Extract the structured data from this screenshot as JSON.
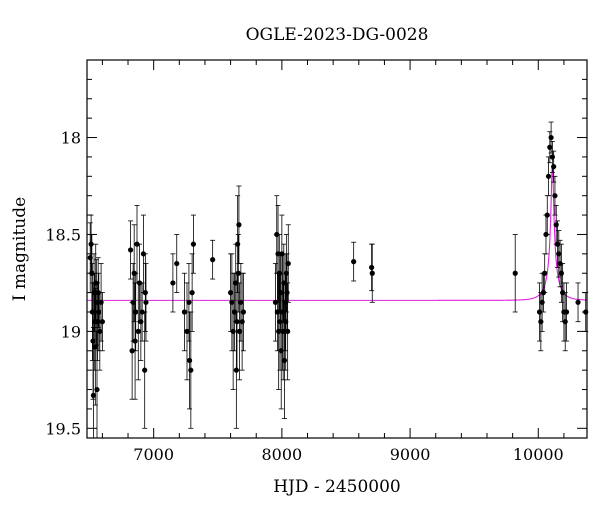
{
  "chart_data": {
    "type": "scatter",
    "title": "OGLE-2023-DG-0028",
    "xlabel": "HJD - 2450000",
    "ylabel": "I magnitude",
    "xlim": [
      6480,
      10380
    ],
    "ylim": [
      19.55,
      17.6
    ],
    "y_inverted": true,
    "x_ticks": [
      7000,
      8000,
      9000,
      10000
    ],
    "y_ticks": [
      18,
      18.5,
      19,
      19.5
    ],
    "x_minor_step": 200,
    "y_minor_step": 0.1,
    "grid": false,
    "colors": {
      "points": "#000000",
      "model": "#e020e0"
    },
    "series": [
      {
        "type": "scatter",
        "points": [
          [
            6505,
            18.62,
            0.18
          ],
          [
            6512,
            18.55,
            0.15
          ],
          [
            6518,
            18.7,
            0.2
          ],
          [
            6522,
            18.9,
            0.25
          ],
          [
            6527,
            19.05,
            0.3
          ],
          [
            6530,
            19.33,
            0.35
          ],
          [
            6535,
            18.8,
            0.2
          ],
          [
            6540,
            18.95,
            0.25
          ],
          [
            6545,
            19.08,
            0.3
          ],
          [
            6548,
            18.75,
            0.2
          ],
          [
            6553,
            18.85,
            0.22
          ],
          [
            6558,
            19.3,
            0.3
          ],
          [
            6562,
            18.95,
            0.2
          ],
          [
            6567,
            18.8,
            0.18
          ],
          [
            6572,
            18.9,
            0.2
          ],
          [
            6580,
            19.0,
            0.2
          ],
          [
            6590,
            18.85,
            0.2
          ],
          [
            6600,
            18.95,
            0.15
          ],
          [
            6820,
            18.58,
            0.15
          ],
          [
            6832,
            19.1,
            0.25
          ],
          [
            6840,
            18.85,
            0.2
          ],
          [
            6848,
            18.7,
            0.25
          ],
          [
            6855,
            19.05,
            0.3
          ],
          [
            6860,
            18.9,
            0.2
          ],
          [
            6870,
            18.55,
            0.2
          ],
          [
            6880,
            19.0,
            0.25
          ],
          [
            6890,
            18.75,
            0.2
          ],
          [
            6900,
            18.95,
            0.2
          ],
          [
            6910,
            18.9,
            0.15
          ],
          [
            6920,
            18.6,
            0.2
          ],
          [
            6930,
            19.2,
            0.3
          ],
          [
            6935,
            18.8,
            0.2
          ],
          [
            6940,
            18.85,
            0.2
          ],
          [
            7150,
            18.75,
            0.15
          ],
          [
            7180,
            18.65,
            0.15
          ],
          [
            7240,
            18.9,
            0.2
          ],
          [
            7260,
            19.0,
            0.25
          ],
          [
            7275,
            18.85,
            0.2
          ],
          [
            7280,
            19.15,
            0.25
          ],
          [
            7290,
            19.2,
            0.3
          ],
          [
            7300,
            18.8,
            0.2
          ],
          [
            7310,
            18.55,
            0.15
          ],
          [
            7460,
            18.63,
            0.1
          ],
          [
            7600,
            18.8,
            0.2
          ],
          [
            7610,
            18.85,
            0.25
          ],
          [
            7620,
            19.0,
            0.3
          ],
          [
            7630,
            18.9,
            0.2
          ],
          [
            7640,
            18.75,
            0.2
          ],
          [
            7645,
            19.2,
            0.3
          ],
          [
            7650,
            18.95,
            0.25
          ],
          [
            7655,
            18.55,
            0.25
          ],
          [
            7660,
            18.7,
            0.2
          ],
          [
            7665,
            18.45,
            0.2
          ],
          [
            7670,
            19.0,
            0.25
          ],
          [
            7680,
            18.85,
            0.2
          ],
          [
            7690,
            18.95,
            0.25
          ],
          [
            7700,
            18.9,
            0.2
          ],
          [
            7950,
            18.85,
            0.2
          ],
          [
            7960,
            18.5,
            0.2
          ],
          [
            7965,
            18.9,
            0.2
          ],
          [
            7970,
            18.6,
            0.25
          ],
          [
            7975,
            19.0,
            0.3
          ],
          [
            7980,
            18.7,
            0.2
          ],
          [
            7985,
            18.95,
            0.25
          ],
          [
            7990,
            18.8,
            0.2
          ],
          [
            7995,
            19.1,
            0.3
          ],
          [
            8000,
            18.6,
            0.2
          ],
          [
            8005,
            18.9,
            0.3
          ],
          [
            8010,
            19.0,
            0.25
          ],
          [
            8015,
            18.75,
            0.2
          ],
          [
            8020,
            19.15,
            0.3
          ],
          [
            8025,
            18.85,
            0.25
          ],
          [
            8030,
            18.95,
            0.25
          ],
          [
            8035,
            18.7,
            0.2
          ],
          [
            8040,
            18.8,
            0.2
          ],
          [
            8045,
            19.0,
            0.25
          ],
          [
            8050,
            18.65,
            0.2
          ],
          [
            8560,
            18.64,
            0.1
          ],
          [
            8700,
            18.67,
            0.12
          ],
          [
            8705,
            18.7,
            0.15
          ],
          [
            9820,
            18.7,
            0.2
          ],
          [
            10010,
            18.9,
            0.15
          ],
          [
            10020,
            18.95,
            0.15
          ],
          [
            10030,
            18.85,
            0.15
          ],
          [
            10040,
            18.8,
            0.1
          ],
          [
            10050,
            18.7,
            0.1
          ],
          [
            10060,
            18.5,
            0.1
          ],
          [
            10070,
            18.4,
            0.1
          ],
          [
            10080,
            18.2,
            0.1
          ],
          [
            10090,
            18.05,
            0.08
          ],
          [
            10100,
            18.0,
            0.08
          ],
          [
            10110,
            18.1,
            0.08
          ],
          [
            10120,
            18.15,
            0.08
          ],
          [
            10130,
            18.3,
            0.1
          ],
          [
            10140,
            18.45,
            0.1
          ],
          [
            10150,
            18.55,
            0.12
          ],
          [
            10160,
            18.6,
            0.12
          ],
          [
            10170,
            18.65,
            0.12
          ],
          [
            10180,
            18.7,
            0.15
          ],
          [
            10190,
            18.8,
            0.15
          ],
          [
            10200,
            18.9,
            0.15
          ],
          [
            10210,
            18.95,
            0.15
          ],
          [
            10220,
            18.9,
            0.15
          ],
          [
            10310,
            18.85,
            0.1
          ],
          [
            10370,
            18.9,
            0.1
          ]
        ]
      },
      {
        "type": "line",
        "model": {
          "baseline": 18.84,
          "peak_x": 10110,
          "peak_y": 18.13,
          "u0": 0.1,
          "tE": 90
        }
      }
    ]
  }
}
